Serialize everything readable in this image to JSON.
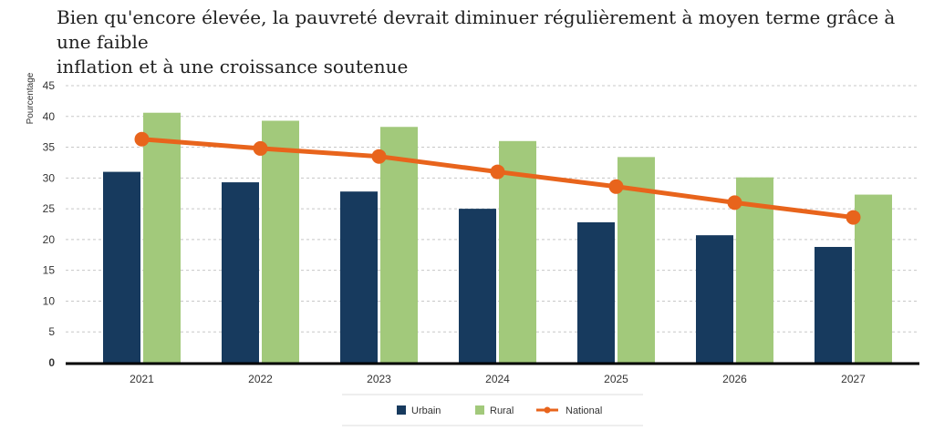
{
  "title": {
    "line1": "Bien qu'encore élevée, la pauvreté devrait diminuer régulièrement à moyen terme grâce à une faible",
    "line2": "inflation et à une croissance soutenue"
  },
  "colors": {
    "urbain": "#173a5e",
    "rural": "#a2c97b",
    "national": "#e8641c",
    "grid": "#c8c8c8",
    "axis": "#000000"
  },
  "chart_data": {
    "type": "bar",
    "categories": [
      "2021",
      "2022",
      "2023",
      "2024",
      "2025",
      "2026",
      "2027"
    ],
    "series": [
      {
        "name": "Urbain",
        "type": "bar",
        "values": [
          31,
          29.3,
          27.8,
          25,
          22.8,
          20.7,
          18.8
        ]
      },
      {
        "name": "Rural",
        "type": "bar",
        "values": [
          40.6,
          39.3,
          38.3,
          36,
          33.4,
          30.1,
          27.3
        ]
      },
      {
        "name": "National",
        "type": "line",
        "values": [
          36.3,
          34.8,
          33.5,
          31,
          28.6,
          26,
          23.6
        ]
      }
    ],
    "ylabel": "Pourcentage",
    "ylim": [
      0,
      45
    ],
    "yticks": [
      "0",
      "5",
      "10",
      "15",
      "20",
      "25",
      "30",
      "35",
      "40",
      "45"
    ],
    "grid": true,
    "legend": "bottom"
  }
}
